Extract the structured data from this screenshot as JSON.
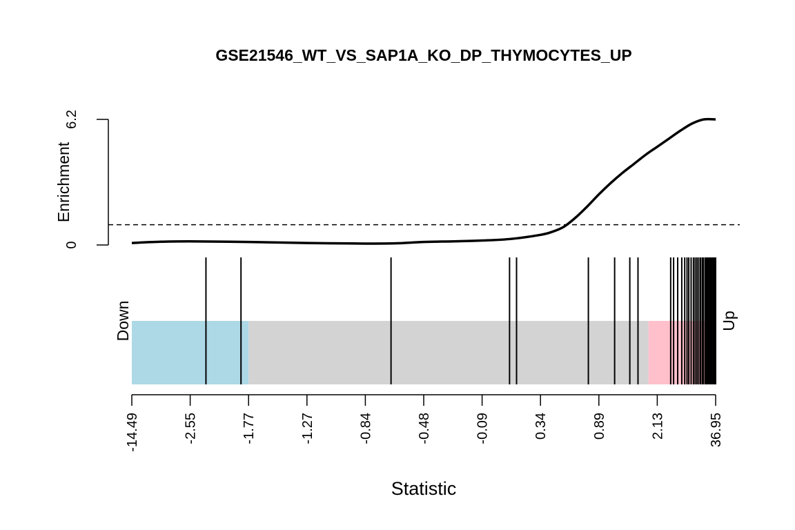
{
  "chart_data": {
    "type": "barcode-enrichment",
    "title": "GSE21546_WT_VS_SAP1A_KO_DP_THYMOCYTES_UP",
    "xlabel": "Statistic",
    "ylabel": "Enrichment",
    "down_label": "Down",
    "up_label": "Up",
    "enrichment_ticks": [
      "0",
      "6.2"
    ],
    "enrichment_ylim": [
      0,
      6.2
    ],
    "enrichment_baseline": 1,
    "enrichment_curve": {
      "rank_fraction": [
        0,
        0.05,
        0.1,
        0.2,
        0.3,
        0.4,
        0.45,
        0.5,
        0.55,
        0.6,
        0.65,
        0.7,
        0.72,
        0.74,
        0.76,
        0.78,
        0.8,
        0.82,
        0.84,
        0.86,
        0.88,
        0.9,
        0.92,
        0.94,
        0.96,
        0.98,
        1.0
      ],
      "enrichment": [
        0.1,
        0.16,
        0.18,
        0.15,
        0.1,
        0.07,
        0.08,
        0.15,
        0.18,
        0.22,
        0.3,
        0.5,
        0.65,
        0.9,
        1.35,
        1.9,
        2.5,
        3.05,
        3.55,
        4.0,
        4.45,
        4.85,
        5.25,
        5.65,
        6.0,
        6.2,
        6.2
      ]
    },
    "statistic_tick_labels": [
      "-14.49",
      "-2.55",
      "-1.77",
      "-1.27",
      "-0.84",
      "-0.48",
      "-0.09",
      "0.34",
      "0.89",
      "2.13",
      "36.95"
    ],
    "down_region_end_fraction": 0.2,
    "up_region_start_fraction": 0.885,
    "gene_rank_fractions": [
      0.127,
      0.187,
      0.444,
      0.647,
      0.659,
      0.782,
      0.827,
      0.853,
      0.867,
      0.923,
      0.928,
      0.935,
      0.942,
      0.947,
      0.951,
      0.954,
      0.958,
      0.962,
      0.965,
      0.968,
      0.971,
      0.974,
      0.977,
      0.979,
      0.982,
      0.984,
      0.986,
      0.988,
      0.99,
      0.992,
      0.994,
      0.996,
      0.998,
      1.0
    ],
    "colors": {
      "down": "#add8e6",
      "middle": "#d3d3d3",
      "up": "#ffc0cb",
      "line": "#000000"
    }
  }
}
